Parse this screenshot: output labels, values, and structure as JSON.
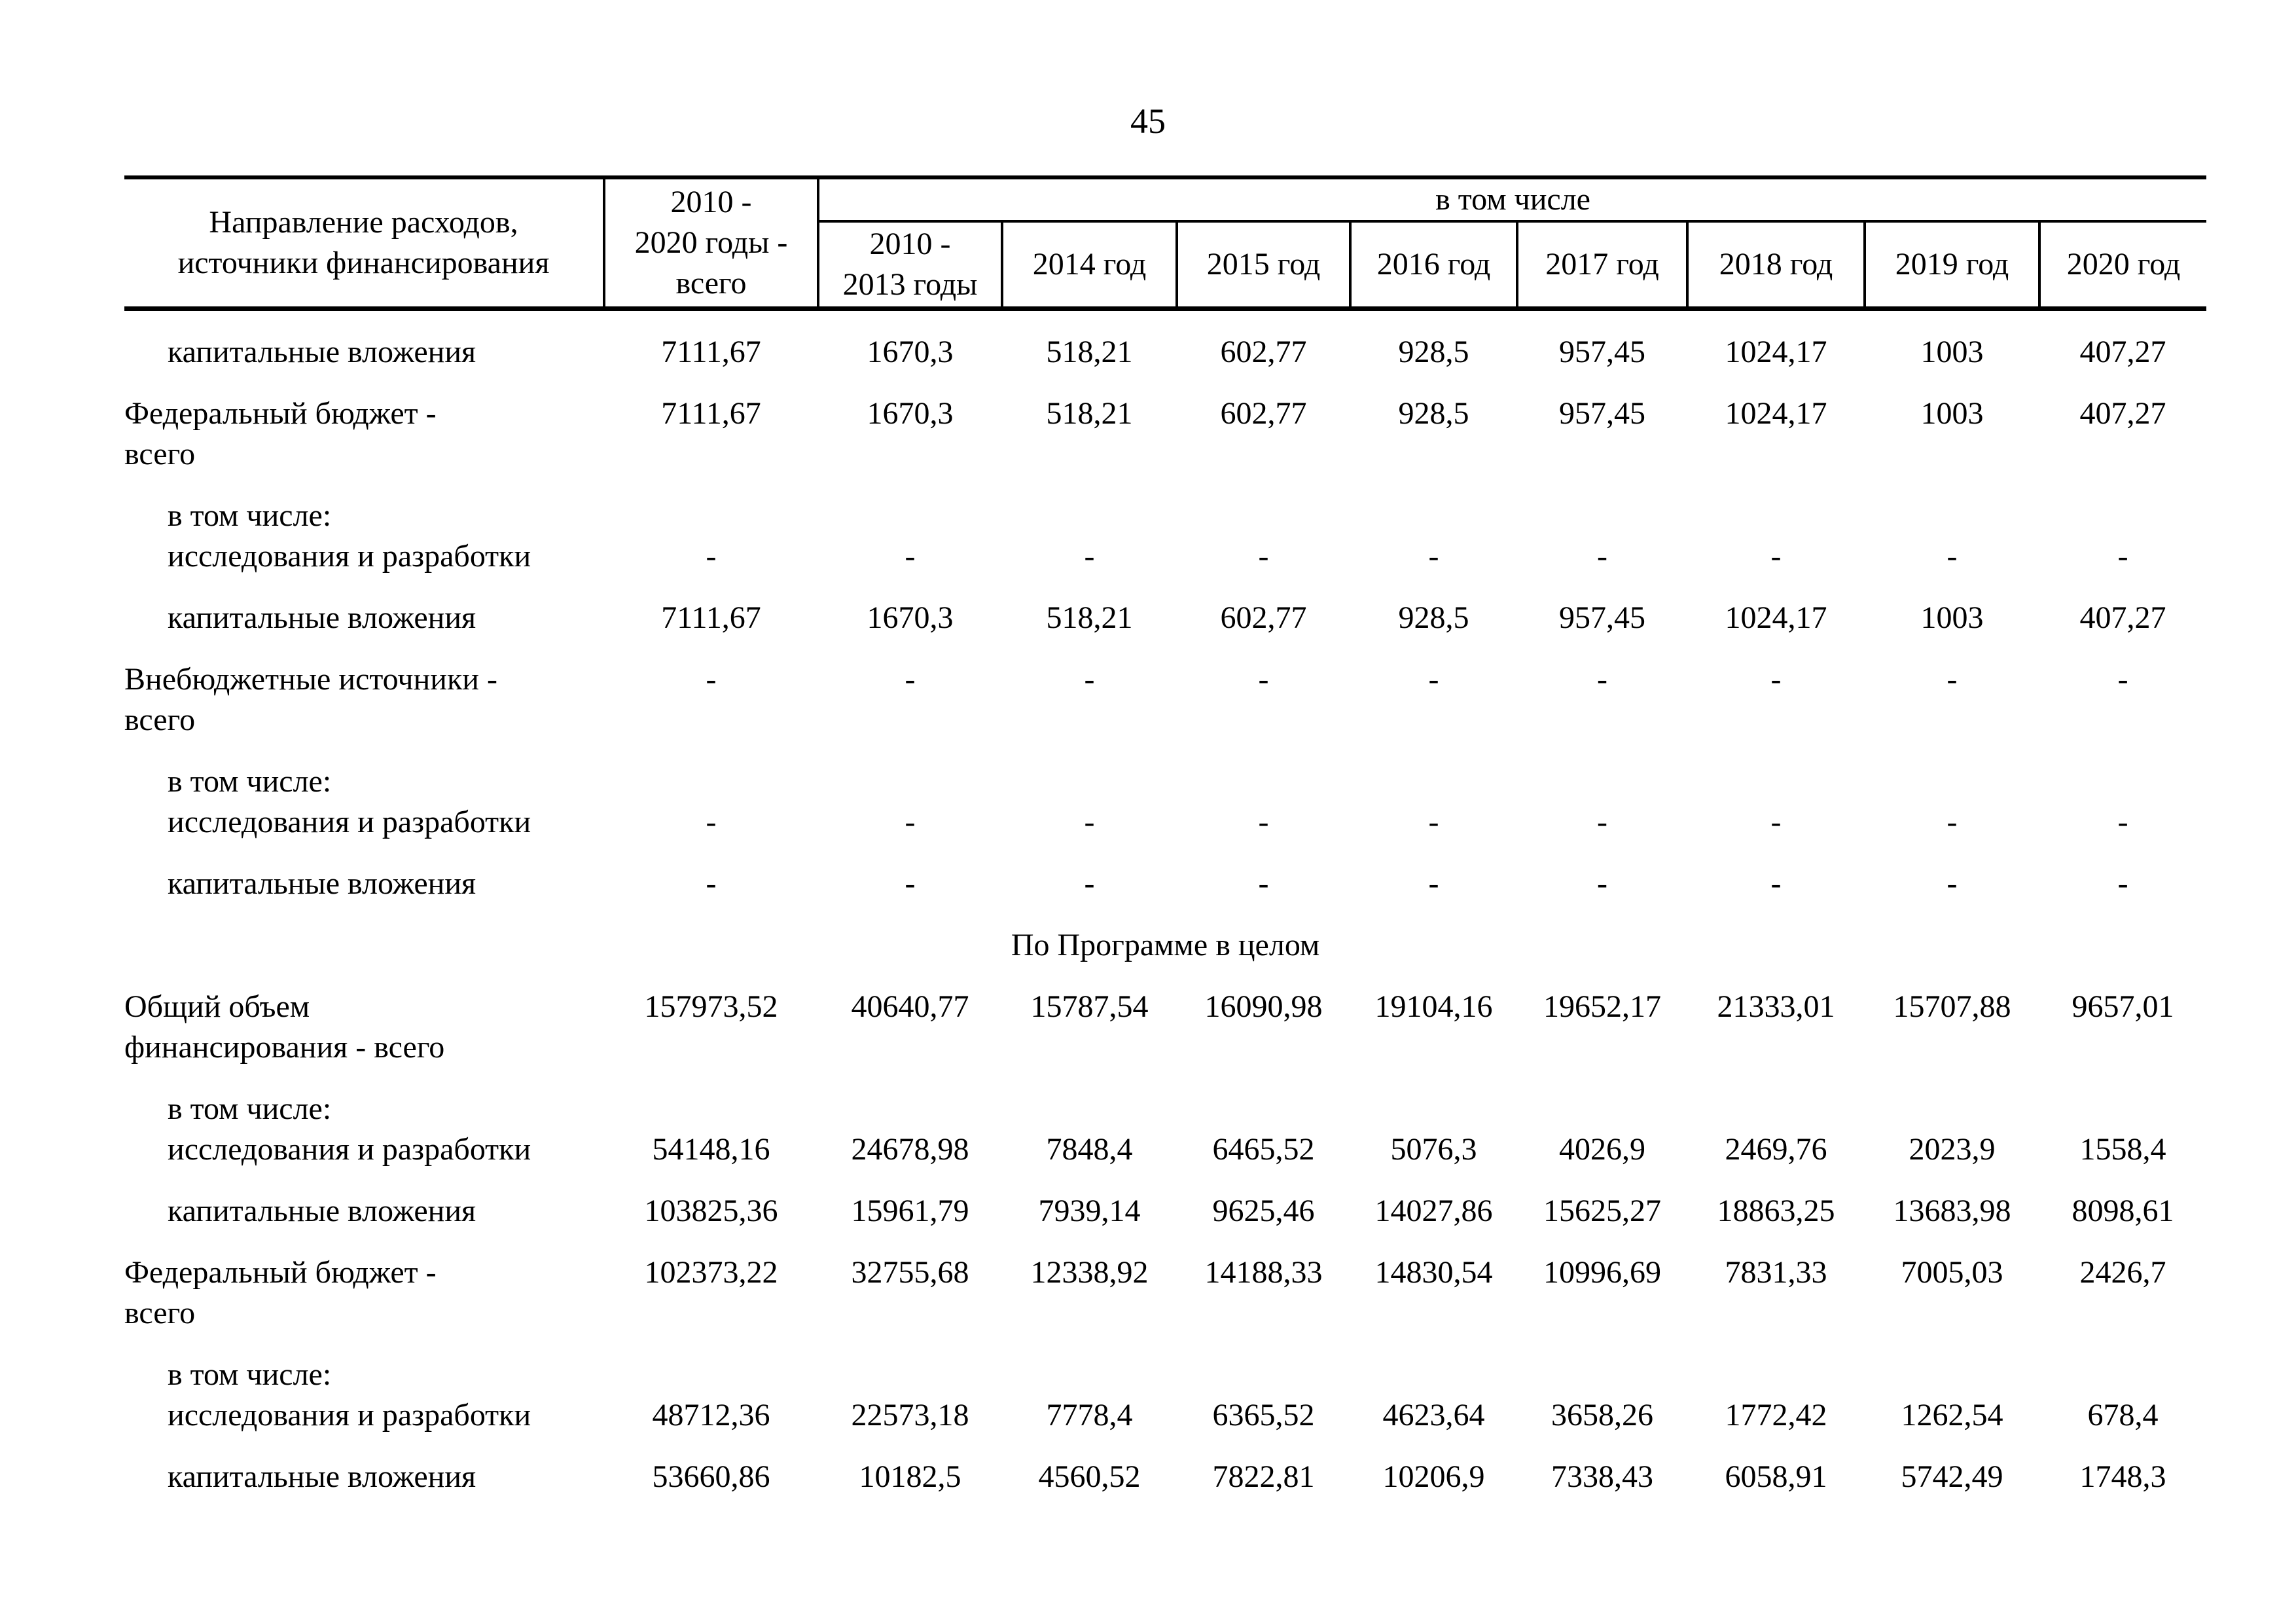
{
  "page": {
    "number": "45"
  },
  "table": {
    "header": {
      "direction": "Направление расходов,\nисточники финансирования",
      "total": "2010 -\n2020 годы -\nвсего",
      "including": "в том числе",
      "years": [
        "2010 -\n2013 годы",
        "2014 год",
        "2015 год",
        "2016 год",
        "2017 год",
        "2018 год",
        "2019 год",
        "2020 год"
      ]
    },
    "rows": [
      {
        "label": "капитальные вложения",
        "indent": true,
        "align": "top",
        "values": [
          "7111,67",
          "1670,3",
          "518,21",
          "602,77",
          "928,5",
          "957,45",
          "1024,17",
          "1003",
          "407,27"
        ]
      },
      {
        "label": "Федеральный бюджет -\nвсего",
        "indent": false,
        "align": "top",
        "values": [
          "7111,67",
          "1670,3",
          "518,21",
          "602,77",
          "928,5",
          "957,45",
          "1024,17",
          "1003",
          "407,27"
        ]
      },
      {
        "label": "в том числе:\nисследования и разработки",
        "indent": true,
        "align": "bottom",
        "values": [
          "-",
          "-",
          "-",
          "-",
          "-",
          "-",
          "-",
          "-",
          "-"
        ]
      },
      {
        "label": "капитальные вложения",
        "indent": true,
        "align": "top",
        "values": [
          "7111,67",
          "1670,3",
          "518,21",
          "602,77",
          "928,5",
          "957,45",
          "1024,17",
          "1003",
          "407,27"
        ]
      },
      {
        "label": "Внебюджетные источники -\nвсего",
        "indent": false,
        "align": "top",
        "values": [
          "-",
          "-",
          "-",
          "-",
          "-",
          "-",
          "-",
          "-",
          "-"
        ]
      },
      {
        "label": "в том числе:\nисследования и разработки",
        "indent": true,
        "align": "bottom",
        "values": [
          "-",
          "-",
          "-",
          "-",
          "-",
          "-",
          "-",
          "-",
          "-"
        ]
      },
      {
        "label": "капитальные вложения",
        "indent": true,
        "align": "top",
        "values": [
          "-",
          "-",
          "-",
          "-",
          "-",
          "-",
          "-",
          "-",
          "-"
        ]
      },
      {
        "section": "По Программе в целом"
      },
      {
        "label": "Общий объем\nфинансирования - всего",
        "indent": false,
        "align": "top",
        "values": [
          "157973,52",
          "40640,77",
          "15787,54",
          "16090,98",
          "19104,16",
          "19652,17",
          "21333,01",
          "15707,88",
          "9657,01"
        ]
      },
      {
        "label": "в том числе:\nисследования и разработки",
        "indent": true,
        "align": "bottom",
        "values": [
          "54148,16",
          "24678,98",
          "7848,4",
          "6465,52",
          "5076,3",
          "4026,9",
          "2469,76",
          "2023,9",
          "1558,4"
        ]
      },
      {
        "label": "капитальные вложения",
        "indent": true,
        "align": "top",
        "values": [
          "103825,36",
          "15961,79",
          "7939,14",
          "9625,46",
          "14027,86",
          "15625,27",
          "18863,25",
          "13683,98",
          "8098,61"
        ]
      },
      {
        "label": "Федеральный бюджет -\nвсего",
        "indent": false,
        "align": "top",
        "values": [
          "102373,22",
          "32755,68",
          "12338,92",
          "14188,33",
          "14830,54",
          "10996,69",
          "7831,33",
          "7005,03",
          "2426,7"
        ]
      },
      {
        "label": "в том числе:\nисследования и разработки",
        "indent": true,
        "align": "bottom",
        "values": [
          "48712,36",
          "22573,18",
          "7778,4",
          "6365,52",
          "4623,64",
          "3658,26",
          "1772,42",
          "1262,54",
          "678,4"
        ]
      },
      {
        "label": "капитальные вложения",
        "indent": true,
        "align": "top",
        "values": [
          "53660,86",
          "10182,5",
          "4560,52",
          "7822,81",
          "10206,9",
          "7338,43",
          "6058,91",
          "5742,49",
          "1748,3"
        ]
      }
    ]
  }
}
